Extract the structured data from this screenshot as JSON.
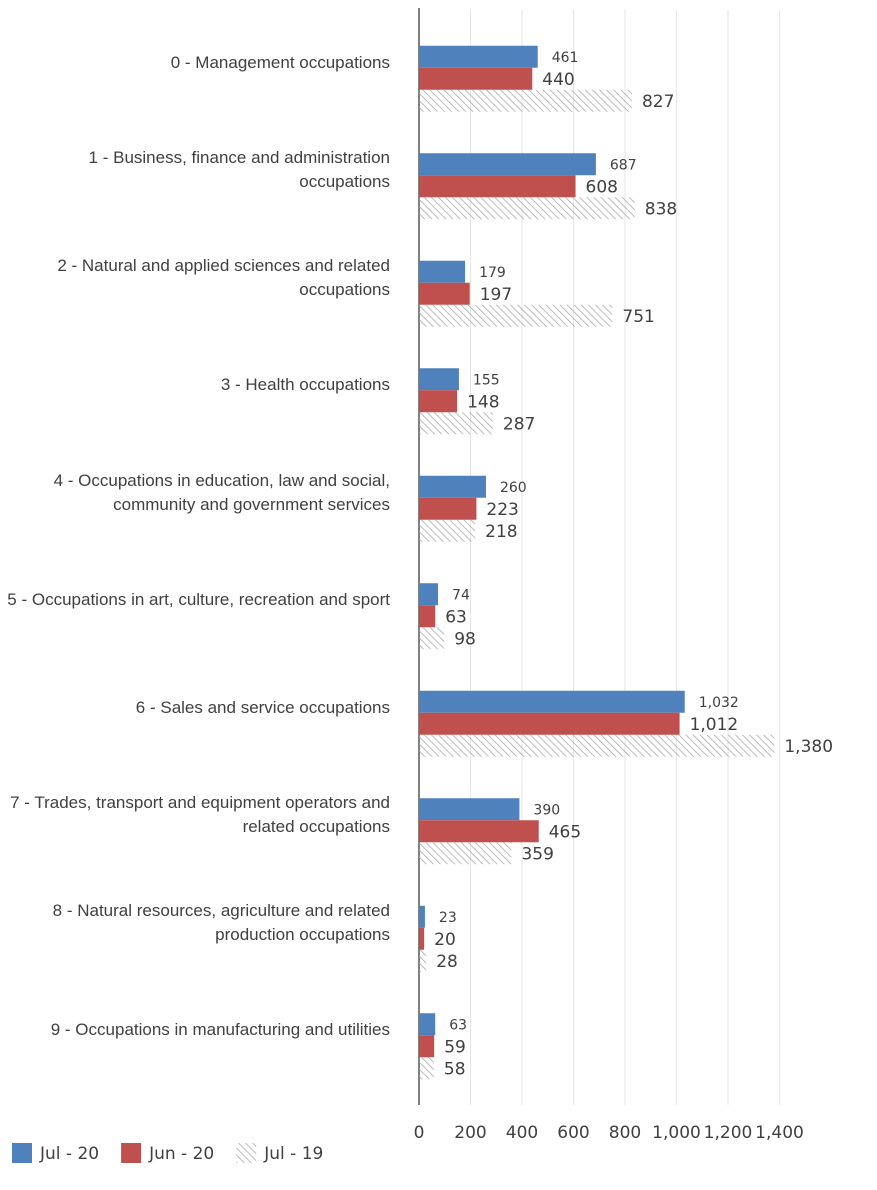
{
  "chart_data": {
    "type": "bar",
    "orientation": "horizontal",
    "categories": [
      "0 - Management occupations",
      "1 - Business, finance and administration occupations",
      "2 - Natural and applied sciences and related occupations",
      "3 - Health occupations",
      "4 - Occupations in education, law and social, community and government services",
      "5 - Occupations in art, culture, recreation and sport",
      "6 - Sales and service occupations",
      "7 - Trades, transport and equipment operators and related occupations",
      "8 - Natural resources, agriculture and related production occupations",
      "9 - Occupations in manufacturing and utilities"
    ],
    "series": [
      {
        "name": "Jul - 20",
        "color": "#4f81bd",
        "values": [
          461,
          687,
          179,
          155,
          260,
          74,
          1032,
          390,
          23,
          63
        ],
        "value_labels": [
          "461",
          "687",
          "179",
          "155",
          "260",
          "74",
          "1,032",
          "390",
          "23",
          "63"
        ]
      },
      {
        "name": "Jun - 20",
        "color": "#c0504d",
        "values": [
          440,
          608,
          197,
          148,
          223,
          63,
          1012,
          465,
          20,
          59
        ],
        "value_labels": [
          "440",
          "608",
          "197",
          "148",
          "223",
          "63",
          "1,012",
          "465",
          "20",
          "59"
        ]
      },
      {
        "name": "Jul - 19",
        "color": "#a6a6a6",
        "pattern": "hatch",
        "values": [
          827,
          838,
          751,
          287,
          218,
          98,
          1380,
          359,
          28,
          58
        ],
        "value_labels": [
          "827",
          "838",
          "751",
          "287",
          "218",
          "98",
          "1,380",
          "359",
          "28",
          "58"
        ]
      }
    ],
    "xlim": [
      0,
      1600
    ],
    "xticks": [
      0,
      200,
      400,
      600,
      800,
      {
        "value": 1000,
        "label": "1,000"
      },
      {
        "value": 1200,
        "label": "1,200"
      },
      {
        "value": 1400,
        "label": "1,400"
      }
    ],
    "grid": true,
    "legend": "bottom-left"
  }
}
